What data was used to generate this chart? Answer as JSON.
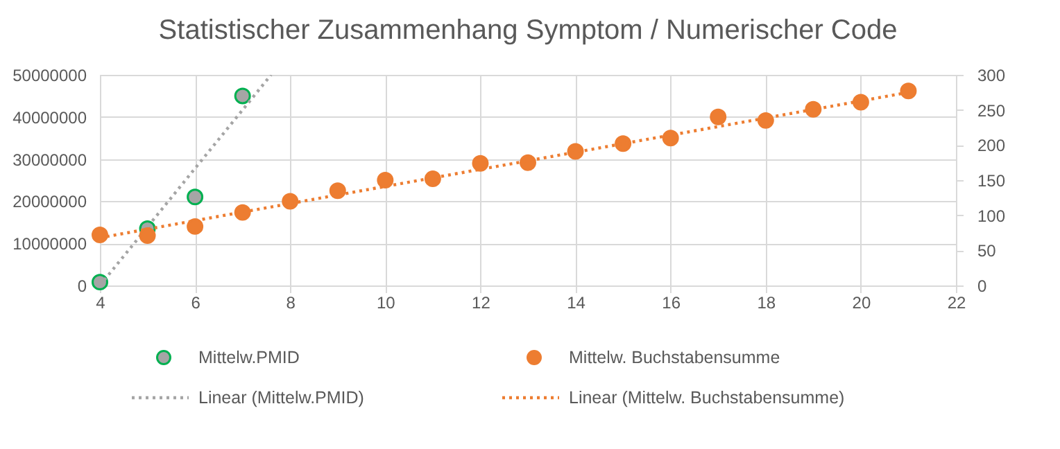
{
  "chart_data": {
    "type": "scatter",
    "title": "Statistischer Zusammenhang Symptom / Numerischer Code",
    "series": [
      {
        "name": "Mittelw.PMID",
        "color": "#a5a5a5",
        "x": [
          4,
          5,
          6,
          7
        ],
        "values": [
          800000,
          13500000,
          21000000,
          45000000
        ]
      },
      {
        "name": "Mittelw. Buchstabensumme",
        "color": "#ed7d31",
        "axis": "y2",
        "x": [
          4,
          5,
          6,
          7,
          8,
          9,
          10,
          11,
          12,
          13,
          14,
          15,
          16,
          17,
          18,
          19,
          20,
          21
        ],
        "values": [
          72,
          71,
          84,
          104,
          120,
          135,
          150,
          152,
          174,
          175,
          191,
          202,
          210,
          240,
          235,
          251,
          261,
          277
        ]
      },
      {
        "name": "Linear (Mittelw.PMID)",
        "type": "line",
        "line_style": "dotted",
        "marker": "none",
        "color": "#a5a5a5",
        "x": [
          4,
          7.6
        ],
        "values": [
          0,
          50000000
        ]
      },
      {
        "name": "Linear (Mittelw. Buchstabensumme)",
        "type": "line",
        "line_style": "dotted",
        "marker": "none",
        "color": "#ed7d31",
        "axis": "y2",
        "x": [
          4,
          21
        ],
        "values": [
          68,
          275
        ]
      }
    ],
    "xlim": [
      4,
      22
    ],
    "xticks": [
      4,
      6,
      8,
      10,
      12,
      14,
      16,
      18,
      20,
      22
    ],
    "ylim": [
      0,
      50000000
    ],
    "yticks": [
      0,
      10000000,
      20000000,
      30000000,
      40000000,
      50000000
    ],
    "y2lim": [
      0,
      300
    ],
    "y2ticks": [
      0,
      50,
      100,
      150,
      200,
      250,
      300
    ],
    "grid": true,
    "legend": "bottom",
    "marker": "circle"
  }
}
